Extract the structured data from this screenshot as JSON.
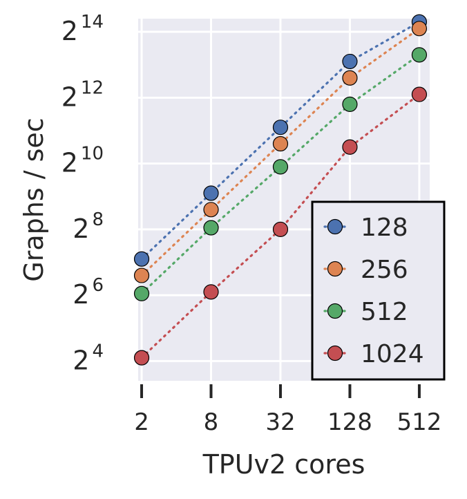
{
  "chart_data": {
    "type": "scatter",
    "title": "",
    "xlabel": "TPUv2 cores",
    "ylabel": "Graphs / sec",
    "x_scale": "log2",
    "y_scale": "log2",
    "x": [
      2,
      8,
      32,
      128,
      512
    ],
    "x_tick_labels": [
      "2",
      "8",
      "32",
      "128",
      "512"
    ],
    "y_ticks": [
      {
        "exp": 4,
        "base": "2",
        "sup": "4"
      },
      {
        "exp": 6,
        "base": "2",
        "sup": "6"
      },
      {
        "exp": 8,
        "base": "2",
        "sup": "8"
      },
      {
        "exp": 10,
        "base": "2",
        "sup": "10"
      },
      {
        "exp": 12,
        "base": "2",
        "sup": "12"
      },
      {
        "exp": 14,
        "base": "2",
        "sup": "14"
      }
    ],
    "xlim_log2": [
      0.9,
      9.3
    ],
    "ylim_log2": [
      3.4,
      14.4
    ],
    "grid": true,
    "legend_position": "lower-right",
    "series": [
      {
        "name": "128",
        "color": "#4c72b0",
        "log2_values": [
          7.1,
          9.1,
          11.1,
          13.1,
          14.3
        ]
      },
      {
        "name": "256",
        "color": "#dd8452",
        "log2_values": [
          6.6,
          8.6,
          10.6,
          12.6,
          14.1
        ]
      },
      {
        "name": "512",
        "color": "#55a868",
        "log2_values": [
          6.05,
          8.05,
          9.9,
          11.8,
          13.3
        ]
      },
      {
        "name": "1024",
        "color": "#c44e52",
        "log2_values": [
          4.1,
          6.1,
          8.0,
          10.5,
          12.1
        ]
      }
    ]
  }
}
